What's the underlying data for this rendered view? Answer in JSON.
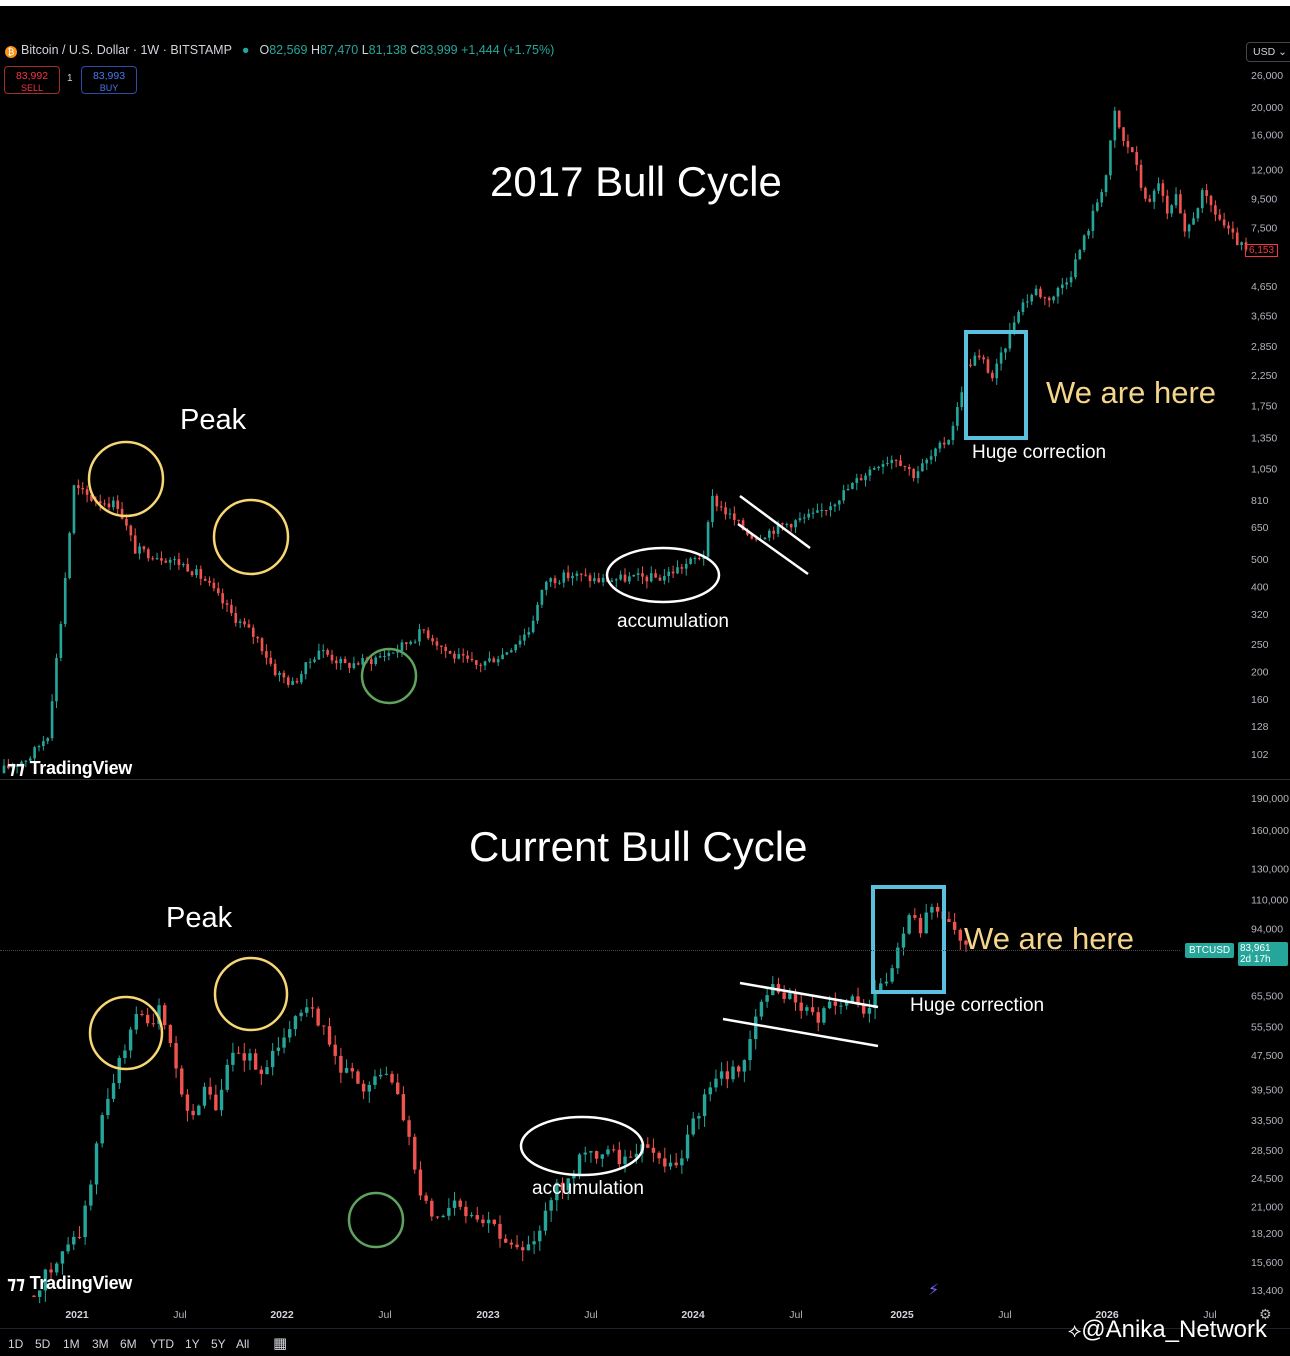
{
  "header": {
    "symbol_title": "Bitcoin / U.S. Dollar · 1W · BITSTAMP",
    "coin_icon": "bitcoin-icon",
    "ohlc": [
      {
        "k": "O",
        "v": "82,569"
      },
      {
        "k": "H",
        "v": "87,470"
      },
      {
        "k": "L",
        "v": "81,138"
      },
      {
        "k": "C",
        "v": "83,999"
      },
      {
        "k": "",
        "v": "+1,444 (+1.75%)"
      }
    ],
    "sell_price": "83,992",
    "sell_label": "SELL",
    "spread": "1",
    "buy_price": "83,993",
    "buy_label": "BUY",
    "currency": "USD"
  },
  "colors": {
    "up": "#26a69a",
    "down": "#ef5350",
    "peak_circle": "#f7d774",
    "bottom_circle": "#5ea35e",
    "box": "#5bc0de",
    "annotation_text": "#f5d58c"
  },
  "tags": {
    "last_price_top": "6,153",
    "btc_symbol": "BTCUSD",
    "btc_price": "83,961",
    "btc_countdown": "2d 17h"
  },
  "toolbar": {
    "timeframes": [
      "1D",
      "5D",
      "1M",
      "3M",
      "6M",
      "YTD",
      "1Y",
      "5Y",
      "All"
    ],
    "calendar_icon": "calendar-icon"
  },
  "watermark": "@Anika_Network",
  "brand": "TradingView",
  "chart_data": [
    {
      "type": "candlestick",
      "title": "2017 Bull Cycle",
      "scale": "log",
      "y_ticks": [
        102,
        128,
        160,
        200,
        250,
        320,
        400,
        500,
        650,
        810,
        1050,
        1350,
        1750,
        2250,
        2850,
        3650,
        4650,
        7500,
        9500,
        12000,
        16000,
        20000,
        26000
      ],
      "close_path": [
        [
          0,
          90
        ],
        [
          6,
          100
        ],
        [
          10,
          120
        ],
        [
          13,
          300
        ],
        [
          16,
          900
        ],
        [
          20,
          820
        ],
        [
          26,
          780
        ],
        [
          30,
          540
        ],
        [
          34,
          520
        ],
        [
          38,
          500
        ],
        [
          42,
          470
        ],
        [
          46,
          420
        ],
        [
          52,
          320
        ],
        [
          58,
          260
        ],
        [
          62,
          200
        ],
        [
          66,
          180
        ],
        [
          72,
          240
        ],
        [
          78,
          210
        ],
        [
          84,
          220
        ],
        [
          90,
          240
        ],
        [
          96,
          280
        ],
        [
          102,
          230
        ],
        [
          108,
          210
        ],
        [
          114,
          230
        ],
        [
          120,
          280
        ],
        [
          124,
          420
        ],
        [
          130,
          440
        ],
        [
          136,
          420
        ],
        [
          144,
          430
        ],
        [
          150,
          430
        ],
        [
          156,
          480
        ],
        [
          160,
          520
        ],
        [
          162,
          820
        ],
        [
          166,
          710
        ],
        [
          170,
          620
        ],
        [
          172,
          600
        ],
        [
          178,
          660
        ],
        [
          186,
          720
        ],
        [
          192,
          860
        ],
        [
          196,
          980
        ],
        [
          200,
          1100
        ],
        [
          204,
          1150
        ],
        [
          208,
          1000
        ],
        [
          212,
          1150
        ],
        [
          216,
          1350
        ],
        [
          218,
          1700
        ],
        [
          220,
          2400
        ],
        [
          222,
          2600
        ],
        [
          224,
          2500
        ],
        [
          226,
          2200
        ],
        [
          228,
          2600
        ],
        [
          232,
          3900
        ],
        [
          236,
          4500
        ],
        [
          238,
          4200
        ],
        [
          240,
          4300
        ],
        [
          244,
          5200
        ],
        [
          248,
          7500
        ],
        [
          252,
          11500
        ],
        [
          254,
          19000
        ],
        [
          256,
          15000
        ],
        [
          258,
          14000
        ],
        [
          260,
          10500
        ],
        [
          262,
          9000
        ],
        [
          264,
          11000
        ],
        [
          266,
          8200
        ],
        [
          268,
          9500
        ],
        [
          270,
          7000
        ],
        [
          274,
          9800
        ],
        [
          276,
          8900
        ],
        [
          280,
          7200
        ],
        [
          284,
          6153
        ]
      ],
      "annotations": [
        {
          "text": "Peak",
          "kind": "label"
        },
        {
          "text": "accumulation",
          "kind": "label"
        },
        {
          "text": "Huge correction",
          "kind": "label"
        },
        {
          "text": "We are here",
          "kind": "label"
        }
      ]
    },
    {
      "type": "candlestick",
      "title": "Current Bull Cycle",
      "scale": "log",
      "y_ticks": [
        13400,
        15600,
        18200,
        21000,
        24500,
        28500,
        33500,
        39500,
        47500,
        55500,
        65500,
        94000,
        110000,
        130000,
        160000,
        190000
      ],
      "x_ticks": [
        "2021",
        "Jul",
        "2022",
        "Jul",
        "2023",
        "Jul",
        "2024",
        "Jul",
        "2025",
        "Jul",
        "2026",
        "Jul"
      ],
      "close_path": [
        [
          0,
          13400
        ],
        [
          4,
          15600
        ],
        [
          8,
          18200
        ],
        [
          10,
          24000
        ],
        [
          12,
          35000
        ],
        [
          14,
          41000
        ],
        [
          16,
          50000
        ],
        [
          18,
          58000
        ],
        [
          20,
          56000
        ],
        [
          22,
          60000
        ],
        [
          24,
          52000
        ],
        [
          26,
          38000
        ],
        [
          28,
          34000
        ],
        [
          30,
          40000
        ],
        [
          32,
          35000
        ],
        [
          34,
          46000
        ],
        [
          38,
          48000
        ],
        [
          40,
          42000
        ],
        [
          42,
          47000
        ],
        [
          46,
          60000
        ],
        [
          48,
          64000
        ],
        [
          50,
          58000
        ],
        [
          52,
          50000
        ],
        [
          54,
          45000
        ],
        [
          56,
          43000
        ],
        [
          58,
          38000
        ],
        [
          60,
          41000
        ],
        [
          62,
          44000
        ],
        [
          64,
          40000
        ],
        [
          66,
          30000
        ],
        [
          68,
          22000
        ],
        [
          70,
          20500
        ],
        [
          72,
          20000
        ],
        [
          74,
          22500
        ],
        [
          76,
          20500
        ],
        [
          80,
          19800
        ],
        [
          84,
          16800
        ],
        [
          86,
          16500
        ],
        [
          88,
          16800
        ],
        [
          90,
          21000
        ],
        [
          92,
          23500
        ],
        [
          94,
          24000
        ],
        [
          96,
          27500
        ],
        [
          100,
          28000
        ],
        [
          104,
          27000
        ],
        [
          106,
          29000
        ],
        [
          108,
          29500
        ],
        [
          110,
          27000
        ],
        [
          112,
          26500
        ],
        [
          114,
          27500
        ],
        [
          116,
          34000
        ],
        [
          118,
          37000
        ],
        [
          120,
          42000
        ],
        [
          124,
          44000
        ],
        [
          126,
          52000
        ],
        [
          128,
          62000
        ],
        [
          130,
          69000
        ],
        [
          132,
          65000
        ],
        [
          134,
          64000
        ],
        [
          136,
          60000
        ],
        [
          138,
          58000
        ],
        [
          140,
          62000
        ],
        [
          142,
          60000
        ],
        [
          144,
          63000
        ],
        [
          146,
          61000
        ],
        [
          148,
          65000
        ],
        [
          150,
          70000
        ],
        [
          152,
          85000
        ],
        [
          154,
          98000
        ],
        [
          156,
          94000
        ],
        [
          158,
          104000
        ],
        [
          160,
          97000
        ],
        [
          162,
          92000
        ],
        [
          164,
          84000
        ]
      ],
      "annotations": [
        {
          "text": "Peak",
          "kind": "label"
        },
        {
          "text": "accumulation",
          "kind": "label"
        },
        {
          "text": "Huge correction",
          "kind": "label"
        },
        {
          "text": "We are here",
          "kind": "label"
        }
      ]
    }
  ]
}
